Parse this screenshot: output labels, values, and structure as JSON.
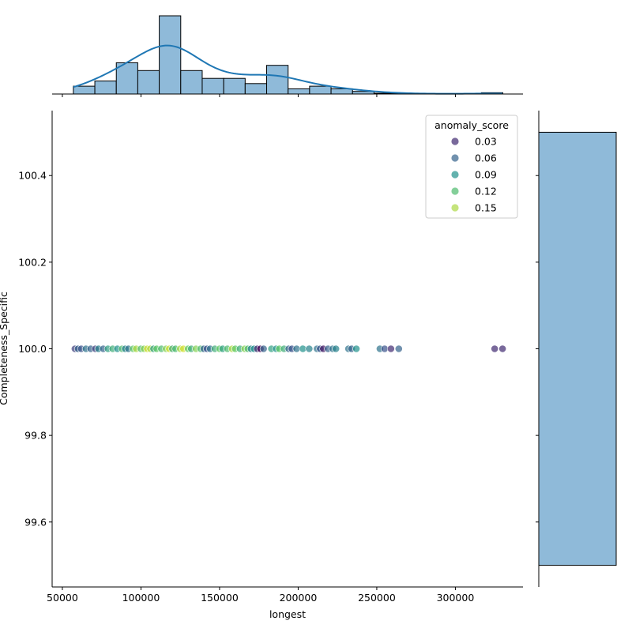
{
  "chart_data": {
    "type": "scatter",
    "xlabel": "longest",
    "ylabel": "Completeness_Specific",
    "xlim": [
      43500,
      343000
    ],
    "ylim": [
      99.45,
      100.55
    ],
    "xticks": [
      50000,
      100000,
      150000,
      200000,
      250000,
      300000
    ],
    "xtick_labels": [
      "50000",
      "100000",
      "150000",
      "200000",
      "250000",
      "300000"
    ],
    "yticks": [
      99.6,
      99.8,
      100.0,
      100.2,
      100.4
    ],
    "ytick_labels": [
      "99.6",
      "99.8",
      "100.0",
      "100.2",
      "100.4"
    ],
    "legend": {
      "title": "anomaly_score",
      "placement": "top-right",
      "entries": [
        {
          "label": "0.03",
          "value": 0.03
        },
        {
          "label": "0.06",
          "value": 0.06
        },
        {
          "label": "0.09",
          "value": 0.09
        },
        {
          "label": "0.12",
          "value": 0.12
        },
        {
          "label": "0.15",
          "value": 0.15
        }
      ]
    },
    "hue_range": [
      0.01,
      0.17
    ],
    "points": [
      [
        58000,
        0.04
      ],
      [
        60000,
        0.06
      ],
      [
        62000,
        0.05
      ],
      [
        65000,
        0.07
      ],
      [
        68000,
        0.06
      ],
      [
        71000,
        0.04
      ],
      [
        73000,
        0.08
      ],
      [
        76000,
        0.06
      ],
      [
        79000,
        0.1
      ],
      [
        82000,
        0.11
      ],
      [
        85000,
        0.09
      ],
      [
        88000,
        0.12
      ],
      [
        90000,
        0.08
      ],
      [
        92000,
        0.07
      ],
      [
        95000,
        0.13
      ],
      [
        97000,
        0.15
      ],
      [
        100000,
        0.12
      ],
      [
        102000,
        0.14
      ],
      [
        104000,
        0.16
      ],
      [
        106000,
        0.15
      ],
      [
        108000,
        0.1
      ],
      [
        110000,
        0.13
      ],
      [
        113000,
        0.12
      ],
      [
        116000,
        0.14
      ],
      [
        118000,
        0.16
      ],
      [
        120000,
        0.11
      ],
      [
        122000,
        0.12
      ],
      [
        125000,
        0.15
      ],
      [
        127000,
        0.16
      ],
      [
        130000,
        0.13
      ],
      [
        132000,
        0.11
      ],
      [
        135000,
        0.14
      ],
      [
        138000,
        0.12
      ],
      [
        140000,
        0.06
      ],
      [
        142000,
        0.05
      ],
      [
        144000,
        0.07
      ],
      [
        147000,
        0.11
      ],
      [
        150000,
        0.13
      ],
      [
        152000,
        0.1
      ],
      [
        155000,
        0.12
      ],
      [
        158000,
        0.15
      ],
      [
        160000,
        0.13
      ],
      [
        163000,
        0.11
      ],
      [
        166000,
        0.14
      ],
      [
        168000,
        0.12
      ],
      [
        170000,
        0.08
      ],
      [
        172000,
        0.09
      ],
      [
        174000,
        0.03
      ],
      [
        176000,
        0.01
      ],
      [
        178000,
        0.06
      ],
      [
        183000,
        0.1
      ],
      [
        186000,
        0.09
      ],
      [
        188000,
        0.13
      ],
      [
        191000,
        0.11
      ],
      [
        194000,
        0.06
      ],
      [
        196000,
        0.05
      ],
      [
        199000,
        0.07
      ],
      [
        203000,
        0.09
      ],
      [
        207000,
        0.08
      ],
      [
        212000,
        0.07
      ],
      [
        214000,
        0.05
      ],
      [
        216000,
        0.02
      ],
      [
        219000,
        0.06
      ],
      [
        222000,
        0.07
      ],
      [
        224000,
        0.08
      ],
      [
        232000,
        0.07
      ],
      [
        234000,
        0.06
      ],
      [
        237000,
        0.09
      ],
      [
        252000,
        0.07
      ],
      [
        255000,
        0.05
      ],
      [
        259000,
        0.03
      ],
      [
        264000,
        0.06
      ],
      [
        325000,
        0.03
      ],
      [
        330000,
        0.03
      ]
    ],
    "y_value": 100.0,
    "marginal_x_hist": {
      "bin_start": 57000,
      "bin_width": 13660,
      "counts": [
        3,
        5,
        12,
        9,
        30,
        9,
        6,
        6,
        4,
        11,
        2,
        3,
        2,
        1,
        0.3,
        0.2,
        0.1,
        0,
        0,
        0.5
      ]
    },
    "marginal_y_hist": {
      "bin_range": [
        99.5,
        100.5
      ],
      "counts": [
        1
      ]
    },
    "colors": {
      "hist": "#8fbad9",
      "kde": "#1f77b4"
    }
  }
}
